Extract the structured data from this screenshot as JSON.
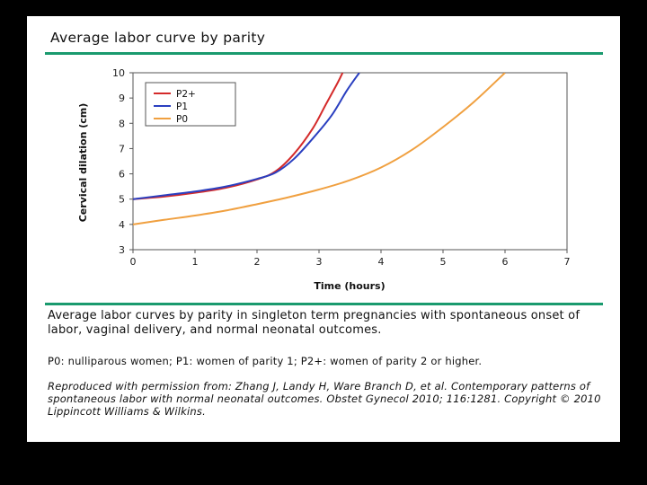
{
  "page": {
    "title": "Average labor curve by parity",
    "caption": "Average labor curves by parity in singleton term pregnancies with spontaneous onset of labor, vaginal delivery, and normal neonatal outcomes.",
    "note": "P0: nulliparous women; P1: women of parity 1; P2+: women of parity 2 or higher.",
    "credit": "Reproduced with permission from: Zhang J, Landy H, Ware Branch D, et al. Contemporary patterns of spontaneous labor with normal neonatal outcomes. Obstet Gynecol 2010; 116:1281. Copyright © 2010 Lippincott Williams & Wilkins."
  },
  "colors": {
    "p2": "#d42a2a",
    "p1": "#2a3fc0",
    "p0": "#f0a040",
    "rule": "#1a9a6e"
  },
  "chart_data": {
    "type": "line",
    "xlabel": "Time (hours)",
    "ylabel": "Cervical dilation (cm)",
    "xlim": [
      0,
      7
    ],
    "ylim": [
      3,
      10
    ],
    "xticks": [
      0,
      1,
      2,
      3,
      4,
      5,
      6,
      7
    ],
    "yticks": [
      3,
      4,
      5,
      6,
      7,
      8,
      9,
      10
    ],
    "legend_position": "top-left",
    "grid": false,
    "series": [
      {
        "name": "P2+",
        "color": "#d42a2a",
        "x": [
          0,
          0.5,
          1,
          1.5,
          2,
          2.3,
          2.6,
          2.9,
          3.1,
          3.3,
          3.38
        ],
        "y": [
          5.0,
          5.1,
          5.25,
          5.45,
          5.78,
          6.1,
          6.8,
          7.8,
          8.7,
          9.6,
          10.0
        ]
      },
      {
        "name": "P1",
        "color": "#2a3fc0",
        "x": [
          0,
          0.5,
          1,
          1.5,
          2,
          2.3,
          2.6,
          2.9,
          3.2,
          3.45,
          3.65
        ],
        "y": [
          5.0,
          5.15,
          5.3,
          5.5,
          5.8,
          6.05,
          6.6,
          7.4,
          8.3,
          9.3,
          10.0
        ]
      },
      {
        "name": "P0",
        "color": "#f0a040",
        "x": [
          0,
          0.5,
          1,
          1.5,
          2,
          2.5,
          3,
          3.5,
          4,
          4.5,
          5,
          5.5,
          6
        ],
        "y": [
          4.0,
          4.18,
          4.35,
          4.55,
          4.8,
          5.07,
          5.38,
          5.75,
          6.25,
          6.95,
          7.85,
          8.85,
          10.0
        ]
      }
    ]
  }
}
